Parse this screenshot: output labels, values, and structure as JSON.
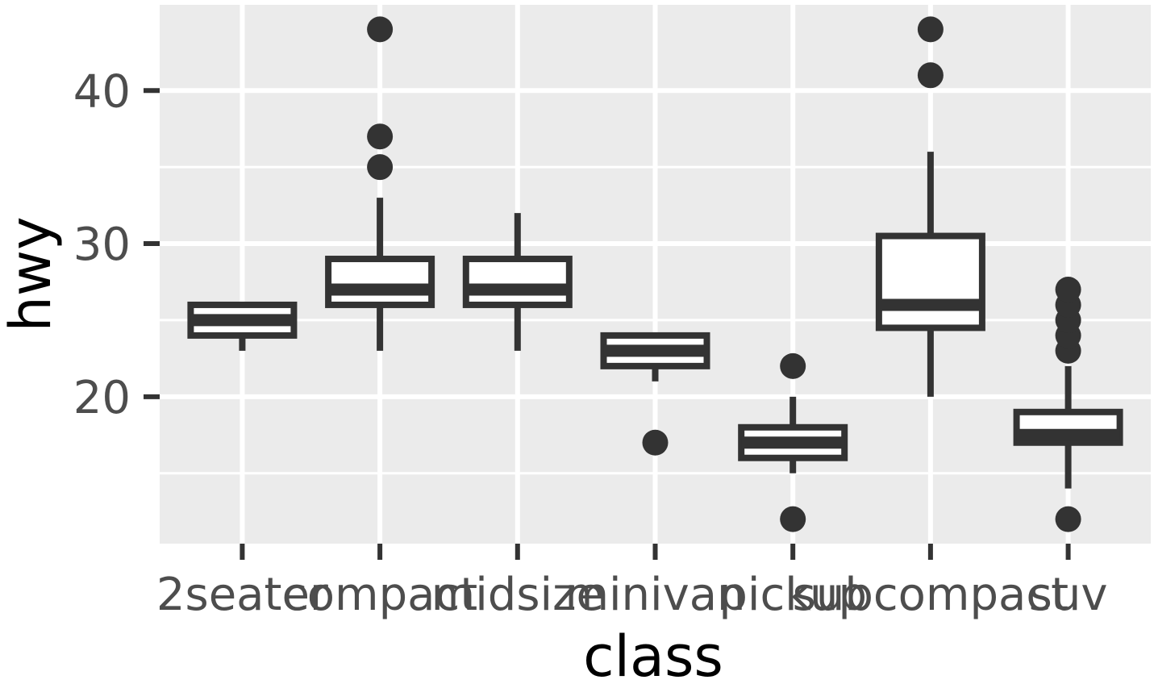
{
  "chart_data": {
    "type": "boxplot",
    "xlabel": "class",
    "ylabel": "hwy",
    "ylim": [
      10.4,
      45.6
    ],
    "y_ticks": [
      20,
      30,
      40
    ],
    "y_tick_labels": [
      "20",
      "30",
      "40"
    ],
    "y_minor_ticks": [
      15,
      25,
      35
    ],
    "grid": true,
    "legend": "none",
    "categories": [
      "2seater",
      "compact",
      "midsize",
      "minivan",
      "pickup",
      "subcompact",
      "suv"
    ],
    "boxes": [
      {
        "category": "2seater",
        "lower_whisker": 23,
        "q1": 24,
        "median": 25,
        "q3": 26,
        "upper_whisker": 26,
        "outliers": []
      },
      {
        "category": "compact",
        "lower_whisker": 23,
        "q1": 26,
        "median": 27,
        "q3": 29,
        "upper_whisker": 33,
        "outliers": [
          35,
          37,
          44
        ]
      },
      {
        "category": "midsize",
        "lower_whisker": 23,
        "q1": 26,
        "median": 27,
        "q3": 29,
        "upper_whisker": 32,
        "outliers": []
      },
      {
        "category": "minivan",
        "lower_whisker": 21,
        "q1": 22,
        "median": 23,
        "q3": 24,
        "upper_whisker": 24,
        "outliers": [
          17
        ]
      },
      {
        "category": "pickup",
        "lower_whisker": 15,
        "q1": 16,
        "median": 17,
        "q3": 18,
        "upper_whisker": 20,
        "outliers": [
          12,
          22
        ]
      },
      {
        "category": "subcompact",
        "lower_whisker": 20,
        "q1": 24.5,
        "median": 26,
        "q3": 30.5,
        "upper_whisker": 36,
        "outliers": [
          41,
          44
        ]
      },
      {
        "category": "suv",
        "lower_whisker": 14,
        "q1": 17,
        "median": 17.5,
        "q3": 19,
        "upper_whisker": 22,
        "outliers": [
          12,
          23,
          24,
          25,
          26,
          27
        ]
      }
    ],
    "colors": {
      "panel": "#ebebeb",
      "grid": "#ffffff",
      "box_outline": "#333333",
      "box_fill": "#ffffff",
      "tick_text": "#4d4d4d",
      "axis_title": "#000000"
    }
  }
}
